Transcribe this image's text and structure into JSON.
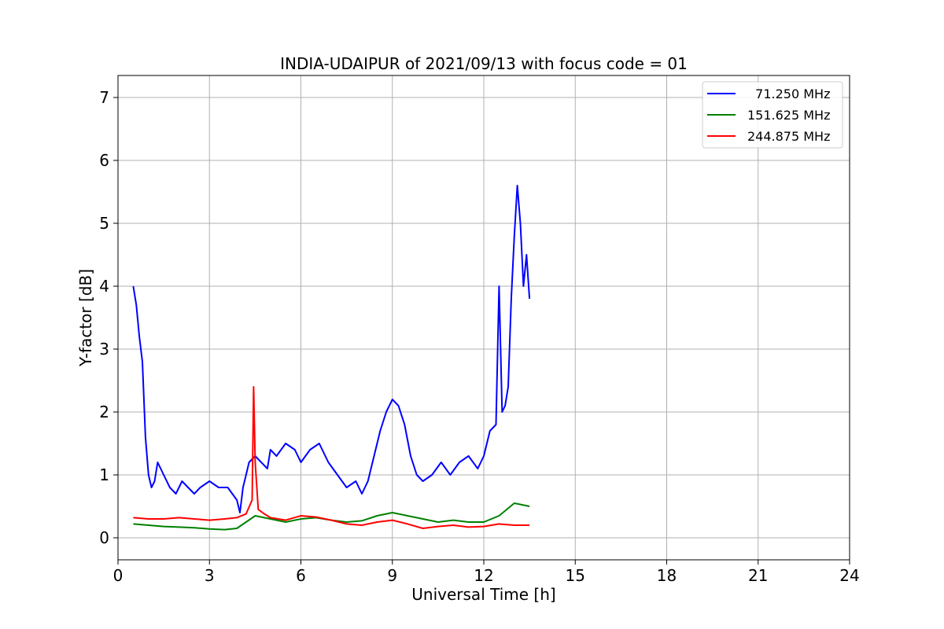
{
  "chart_data": {
    "type": "line",
    "title": "INDIA-UDAIPUR of 2021/09/13 with focus code = 01",
    "xlabel": "Universal Time [h]",
    "ylabel": "Y-factor [dB]",
    "xlim": [
      0,
      24
    ],
    "ylim": [
      -0.35,
      7.35
    ],
    "xticks": [
      0,
      3,
      6,
      9,
      12,
      15,
      18,
      21,
      24
    ],
    "yticks": [
      0,
      1,
      2,
      3,
      4,
      5,
      6,
      7
    ],
    "grid": true,
    "legend_position": "top-right",
    "series": [
      {
        "name": "  71.250 MHz",
        "color": "#0000ff",
        "x": [
          0.5,
          0.6,
          0.7,
          0.8,
          0.9,
          1.0,
          1.1,
          1.2,
          1.3,
          1.5,
          1.7,
          1.9,
          2.1,
          2.3,
          2.5,
          2.7,
          3.0,
          3.3,
          3.6,
          3.9,
          4.0,
          4.1,
          4.2,
          4.3,
          4.5,
          4.7,
          4.9,
          5.0,
          5.2,
          5.5,
          5.8,
          6.0,
          6.3,
          6.6,
          6.9,
          7.2,
          7.5,
          7.8,
          8.0,
          8.2,
          8.4,
          8.6,
          8.8,
          9.0,
          9.2,
          9.4,
          9.6,
          9.8,
          10.0,
          10.3,
          10.6,
          10.9,
          11.2,
          11.5,
          11.8,
          12.0,
          12.2,
          12.4,
          12.5,
          12.6,
          12.7,
          12.8,
          12.9,
          13.0,
          13.1,
          13.2,
          13.3,
          13.4,
          13.5
        ],
        "values": [
          4.0,
          3.7,
          3.2,
          2.8,
          1.6,
          1.0,
          0.8,
          0.9,
          1.2,
          1.0,
          0.8,
          0.7,
          0.9,
          0.8,
          0.7,
          0.8,
          0.9,
          0.8,
          0.8,
          0.6,
          0.4,
          0.8,
          1.0,
          1.2,
          1.3,
          1.2,
          1.1,
          1.4,
          1.3,
          1.5,
          1.4,
          1.2,
          1.4,
          1.5,
          1.2,
          1.0,
          0.8,
          0.9,
          0.7,
          0.9,
          1.3,
          1.7,
          2.0,
          2.2,
          2.1,
          1.8,
          1.3,
          1.0,
          0.9,
          1.0,
          1.2,
          1.0,
          1.2,
          1.3,
          1.1,
          1.3,
          1.7,
          1.8,
          4.0,
          2.0,
          2.1,
          2.4,
          3.8,
          4.8,
          5.6,
          5.0,
          4.0,
          4.5,
          3.8
        ]
      },
      {
        "name": "151.625 MHz",
        "color": "#008000",
        "x": [
          0.5,
          1.0,
          1.5,
          2.0,
          2.5,
          3.0,
          3.5,
          3.9,
          4.2,
          4.5,
          5.0,
          5.5,
          6.0,
          6.5,
          7.0,
          7.5,
          8.0,
          8.5,
          9.0,
          9.5,
          10.0,
          10.5,
          11.0,
          11.5,
          12.0,
          12.5,
          13.0,
          13.5
        ],
        "values": [
          0.22,
          0.2,
          0.18,
          0.17,
          0.16,
          0.14,
          0.13,
          0.15,
          0.25,
          0.35,
          0.3,
          0.25,
          0.3,
          0.32,
          0.28,
          0.25,
          0.27,
          0.35,
          0.4,
          0.35,
          0.3,
          0.25,
          0.28,
          0.25,
          0.25,
          0.35,
          0.55,
          0.5
        ]
      },
      {
        "name": "244.875 MHz",
        "color": "#ff0000",
        "x": [
          0.5,
          1.0,
          1.5,
          2.0,
          2.5,
          3.0,
          3.5,
          3.9,
          4.2,
          4.4,
          4.45,
          4.5,
          4.6,
          4.8,
          5.0,
          5.5,
          6.0,
          6.5,
          7.0,
          7.5,
          8.0,
          8.5,
          9.0,
          9.5,
          10.0,
          10.5,
          11.0,
          11.5,
          12.0,
          12.5,
          13.0,
          13.5
        ],
        "values": [
          0.32,
          0.3,
          0.3,
          0.32,
          0.3,
          0.28,
          0.3,
          0.32,
          0.38,
          0.6,
          2.4,
          1.2,
          0.45,
          0.38,
          0.32,
          0.28,
          0.35,
          0.33,
          0.28,
          0.22,
          0.2,
          0.25,
          0.28,
          0.22,
          0.15,
          0.18,
          0.2,
          0.17,
          0.18,
          0.22,
          0.2,
          0.2
        ]
      }
    ]
  }
}
